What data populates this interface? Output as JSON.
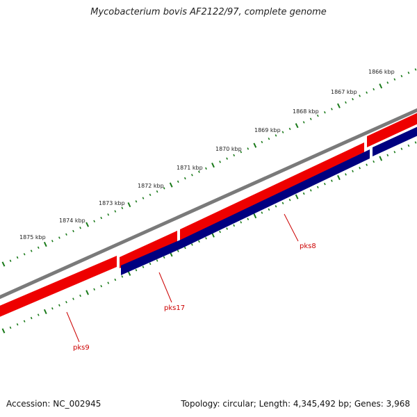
{
  "title": "Mycobacterium bovis AF2122/97, complete genome",
  "footer": {
    "accession": "Accession: NC_002945",
    "summary": "Topology: circular; Length: 4,345,492 bp; Genes: 3,968"
  },
  "colors": {
    "backbone": "#7a7a7a",
    "forward_feature": "#ff0000",
    "reverse_feature": "#000080",
    "label": "#cc0000",
    "ticks": "#1a7a1a"
  },
  "scale_labels": [
    "1866 kbp",
    "1867 kbp",
    "1868 kbp",
    "1869 kbp",
    "1870 kbp",
    "1871 kbp",
    "1872 kbp",
    "1873 kbp",
    "1874 kbp",
    "1875 kbp"
  ],
  "genes": [
    {
      "name": "pks9",
      "strand": "forward"
    },
    {
      "name": "pks17",
      "strand": "reverse"
    },
    {
      "name": "pks8",
      "strand": "reverse"
    }
  ]
}
